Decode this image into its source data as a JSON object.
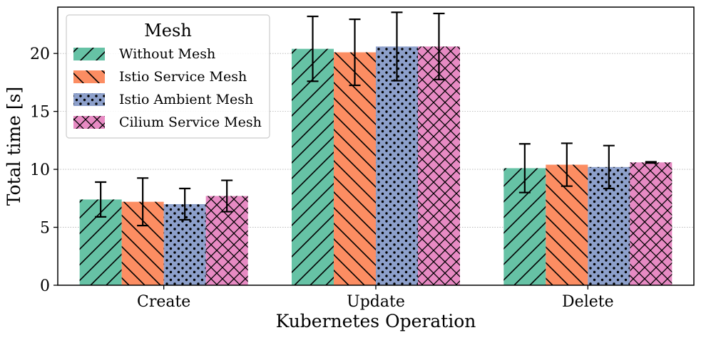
{
  "chart_data": {
    "type": "bar",
    "xlabel": "Kubernetes Operation",
    "ylabel": "Total time [s]",
    "categories": [
      "Create",
      "Update",
      "Delete"
    ],
    "ylim": [
      0,
      24
    ],
    "yticks": [
      "0",
      "5",
      "10",
      "15",
      "20"
    ],
    "grid": "horizontal dotted",
    "legend": {
      "title": "Mesh",
      "placement": "top-left"
    },
    "series": [
      {
        "name": "Without Mesh",
        "color": "#66c2a5",
        "hatch": "diagonal-forward",
        "values": [
          7.4,
          20.4,
          10.1
        ],
        "errors": [
          1.5,
          2.8,
          2.1
        ]
      },
      {
        "name": "Istio Service Mesh",
        "color": "#fc8d62",
        "hatch": "diagonal-back",
        "values": [
          7.2,
          20.1,
          10.4
        ],
        "errors": [
          2.05,
          2.85,
          1.85
        ]
      },
      {
        "name": "Istio Ambient Mesh",
        "color": "#8da0cb",
        "hatch": "dots",
        "values": [
          7.0,
          20.6,
          10.2
        ],
        "errors": [
          1.35,
          2.95,
          1.85
        ]
      },
      {
        "name": "Cilium Service Mesh",
        "color": "#e78ac3",
        "hatch": "crosshatch",
        "values": [
          7.7,
          20.6,
          10.6
        ],
        "errors": [
          1.35,
          2.85,
          0.05
        ]
      }
    ]
  }
}
